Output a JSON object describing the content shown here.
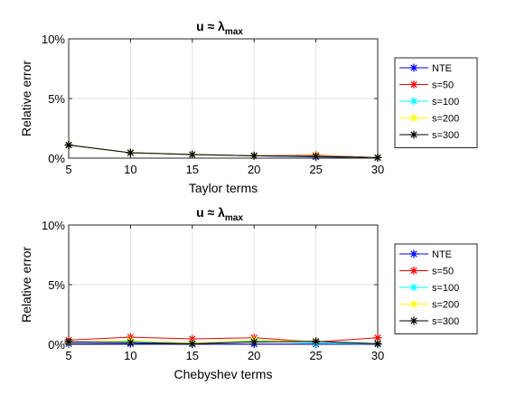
{
  "chart_data": [
    {
      "type": "line",
      "title": {
        "main": "u ≈ λ",
        "sub": "max"
      },
      "xlabel": "Taylor terms",
      "ylabel": "Relative error",
      "x": [
        5,
        10,
        15,
        20,
        25,
        30
      ],
      "xlim": [
        5,
        30
      ],
      "ylim": [
        0,
        10
      ],
      "xticks": [
        "5",
        "10",
        "15",
        "20",
        "25",
        "30"
      ],
      "yticks": [
        {
          "value": 0,
          "label": "0%"
        },
        {
          "value": 5,
          "label": "5%"
        },
        {
          "value": 10,
          "label": "10%"
        }
      ],
      "grid": true,
      "legend": "right",
      "series": [
        {
          "name": "NTE",
          "color": "#0000ff",
          "values": [
            1.1,
            0.45,
            0.3,
            0.2,
            0.1,
            0.05
          ]
        },
        {
          "name": "s=50",
          "color": "#ff0000",
          "values": [
            1.1,
            0.45,
            0.3,
            0.2,
            0.25,
            0.05
          ]
        },
        {
          "name": "s=100",
          "color": "#00ffff",
          "values": [
            1.1,
            0.45,
            0.3,
            0.2,
            0.15,
            0.05
          ]
        },
        {
          "name": "s=200",
          "color": "#ffff00",
          "values": [
            1.1,
            0.45,
            0.3,
            0.2,
            0.2,
            0.05
          ]
        },
        {
          "name": "s=300",
          "color": "#000000",
          "values": [
            1.1,
            0.45,
            0.3,
            0.2,
            0.15,
            0.05
          ]
        }
      ]
    },
    {
      "type": "line",
      "title": {
        "main": "u ≈ λ",
        "sub": "max"
      },
      "xlabel": "Chebyshev terms",
      "ylabel": "Relative error",
      "x": [
        5,
        10,
        15,
        20,
        25,
        30
      ],
      "xlim": [
        5,
        30
      ],
      "ylim": [
        0,
        10
      ],
      "xticks": [
        "5",
        "10",
        "15",
        "20",
        "25",
        "30"
      ],
      "yticks": [
        {
          "value": 0,
          "label": "0%"
        },
        {
          "value": 5,
          "label": "5%"
        },
        {
          "value": 10,
          "label": "10%"
        }
      ],
      "grid": true,
      "legend": "right",
      "series": [
        {
          "name": "NTE",
          "color": "#0000ff",
          "values": [
            0.05,
            0.05,
            0.02,
            0.02,
            0.02,
            0.02
          ]
        },
        {
          "name": "s=50",
          "color": "#ff0000",
          "values": [
            0.35,
            0.6,
            0.45,
            0.55,
            0.2,
            0.55
          ]
        },
        {
          "name": "s=100",
          "color": "#00ffff",
          "values": [
            0.2,
            0.25,
            0.1,
            0.3,
            0.1,
            0.05
          ]
        },
        {
          "name": "s=200",
          "color": "#ffff00",
          "values": [
            0.15,
            0.3,
            0.1,
            0.35,
            0.25,
            0.05
          ]
        },
        {
          "name": "s=300",
          "color": "#000000",
          "values": [
            0.2,
            0.15,
            0.05,
            0.2,
            0.25,
            0.05
          ]
        }
      ]
    }
  ]
}
